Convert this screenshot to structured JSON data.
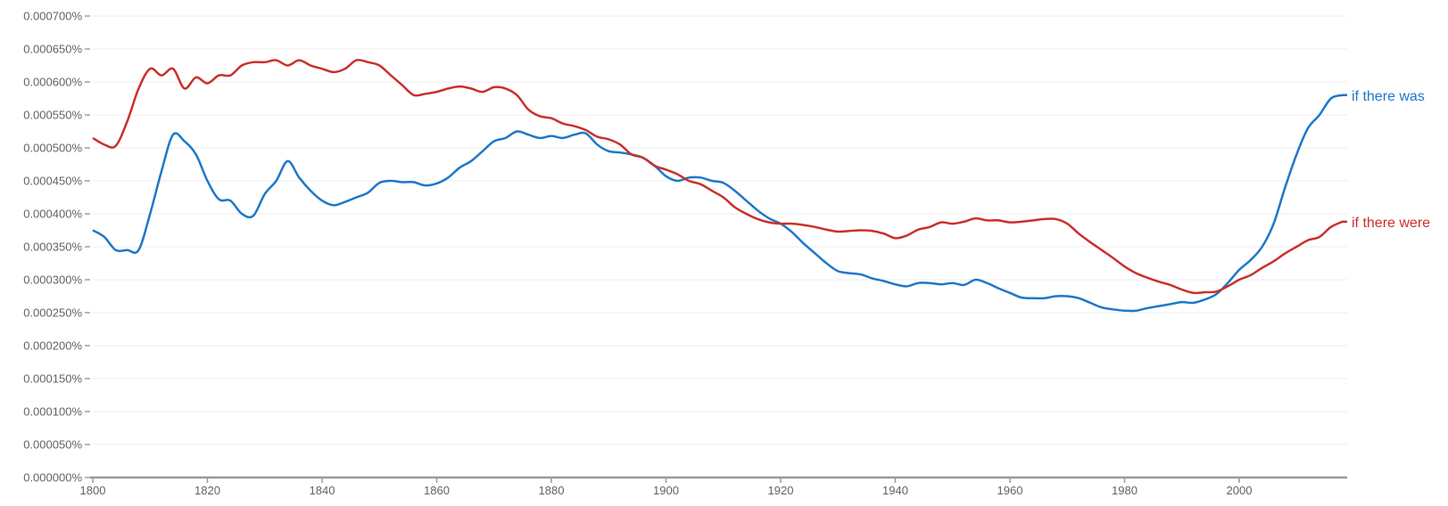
{
  "chart_data": {
    "type": "line",
    "title": "",
    "xlabel": "",
    "ylabel": "",
    "xlim": [
      1800,
      2019
    ],
    "ylim": [
      0,
      0.0007
    ],
    "grid": true,
    "legend_position": "inline-right",
    "x_ticks": [
      1800,
      1820,
      1840,
      1860,
      1880,
      1900,
      1920,
      1940,
      1960,
      1980,
      2000
    ],
    "x_tick_labels": [
      "1800",
      "1820",
      "1840",
      "1860",
      "1880",
      "1900",
      "1920",
      "1940",
      "1960",
      "1980",
      "2000"
    ],
    "y_ticks": [
      0,
      5e-05,
      0.0001,
      0.00015,
      0.0002,
      0.00025,
      0.0003,
      0.00035,
      0.0004,
      0.00045,
      0.0005,
      0.00055,
      0.0006,
      0.00065,
      0.0007
    ],
    "y_tick_labels": [
      "0.000000%",
      "0.000050%",
      "0.000100%",
      "0.000150%",
      "0.000200%",
      "0.000250%",
      "0.000300%",
      "0.000350%",
      "0.000400%",
      "0.000450%",
      "0.000500%",
      "0.000550%",
      "0.000600%",
      "0.000650%",
      "0.000700%"
    ],
    "x": [
      1800,
      1802,
      1804,
      1806,
      1808,
      1810,
      1812,
      1814,
      1816,
      1818,
      1820,
      1822,
      1824,
      1826,
      1828,
      1830,
      1832,
      1834,
      1836,
      1838,
      1840,
      1842,
      1844,
      1846,
      1848,
      1850,
      1852,
      1854,
      1856,
      1858,
      1860,
      1862,
      1864,
      1866,
      1868,
      1870,
      1872,
      1874,
      1876,
      1878,
      1880,
      1882,
      1884,
      1886,
      1888,
      1890,
      1892,
      1894,
      1896,
      1898,
      1900,
      1902,
      1904,
      1906,
      1908,
      1910,
      1912,
      1914,
      1916,
      1918,
      1920,
      1922,
      1924,
      1926,
      1928,
      1930,
      1932,
      1934,
      1936,
      1938,
      1940,
      1942,
      1944,
      1946,
      1948,
      1950,
      1952,
      1954,
      1956,
      1958,
      1960,
      1962,
      1964,
      1966,
      1968,
      1970,
      1972,
      1974,
      1976,
      1978,
      1980,
      1982,
      1984,
      1986,
      1988,
      1990,
      1992,
      1994,
      1996,
      1998,
      2000,
      2002,
      2004,
      2006,
      2008,
      2010,
      2012,
      2014,
      2016,
      2018
    ],
    "series": [
      {
        "name": "if there was",
        "color": "#1f77c9",
        "values": [
          0.000375,
          0.000365,
          0.000345,
          0.000345,
          0.000345,
          0.0004,
          0.000465,
          0.00052,
          0.00051,
          0.00049,
          0.00045,
          0.000422,
          0.00042,
          0.0004,
          0.000397,
          0.00043,
          0.00045,
          0.00048,
          0.000455,
          0.000435,
          0.00042,
          0.000413,
          0.000418,
          0.000425,
          0.000432,
          0.000447,
          0.00045,
          0.000448,
          0.000448,
          0.000443,
          0.000446,
          0.000455,
          0.00047,
          0.00048,
          0.000495,
          0.00051,
          0.000515,
          0.000525,
          0.00052,
          0.000515,
          0.000518,
          0.000515,
          0.00052,
          0.000522,
          0.000505,
          0.000495,
          0.000493,
          0.00049,
          0.000485,
          0.000473,
          0.000457,
          0.00045,
          0.000455,
          0.000455,
          0.00045,
          0.000447,
          0.000435,
          0.00042,
          0.000405,
          0.000393,
          0.000385,
          0.000372,
          0.000355,
          0.00034,
          0.000325,
          0.000313,
          0.00031,
          0.000308,
          0.000302,
          0.000298,
          0.000293,
          0.00029,
          0.000295,
          0.000295,
          0.000293,
          0.000295,
          0.000292,
          0.0003,
          0.000295,
          0.000287,
          0.00028,
          0.000273,
          0.000272,
          0.000272,
          0.000275,
          0.000275,
          0.000272,
          0.000265,
          0.000258,
          0.000255,
          0.000253,
          0.000253,
          0.000257,
          0.00026,
          0.000263,
          0.000266,
          0.000265,
          0.00027,
          0.000278,
          0.000295,
          0.000315,
          0.00033,
          0.00035,
          0.000385,
          0.00044,
          0.00049,
          0.00053,
          0.00055,
          0.000575,
          0.00058
        ]
      },
      {
        "name": "if there were",
        "color": "#c9302c",
        "values": [
          0.000515,
          0.000505,
          0.000503,
          0.00054,
          0.00059,
          0.00062,
          0.00061,
          0.00062,
          0.00059,
          0.000607,
          0.000598,
          0.00061,
          0.00061,
          0.000625,
          0.00063,
          0.00063,
          0.000633,
          0.000625,
          0.000633,
          0.000625,
          0.00062,
          0.000615,
          0.00062,
          0.000633,
          0.00063,
          0.000625,
          0.00061,
          0.000595,
          0.00058,
          0.000582,
          0.000585,
          0.00059,
          0.000593,
          0.00059,
          0.000585,
          0.000592,
          0.00059,
          0.00058,
          0.000558,
          0.000548,
          0.000545,
          0.000537,
          0.000533,
          0.000527,
          0.000517,
          0.000513,
          0.000505,
          0.00049,
          0.000485,
          0.000473,
          0.000467,
          0.00046,
          0.00045,
          0.000445,
          0.000435,
          0.000425,
          0.00041,
          0.0004,
          0.000392,
          0.000387,
          0.000385,
          0.000385,
          0.000383,
          0.00038,
          0.000376,
          0.000373,
          0.000374,
          0.000375,
          0.000374,
          0.00037,
          0.000363,
          0.000367,
          0.000376,
          0.00038,
          0.000387,
          0.000385,
          0.000388,
          0.000393,
          0.00039,
          0.00039,
          0.000387,
          0.000388,
          0.00039,
          0.000392,
          0.000392,
          0.000385,
          0.00037,
          0.000357,
          0.000345,
          0.000333,
          0.00032,
          0.00031,
          0.000303,
          0.000297,
          0.000292,
          0.000285,
          0.00028,
          0.000281,
          0.000282,
          0.00029,
          0.0003,
          0.000307,
          0.000318,
          0.000328,
          0.00034,
          0.00035,
          0.00036,
          0.000365,
          0.00038,
          0.000388
        ]
      }
    ]
  }
}
